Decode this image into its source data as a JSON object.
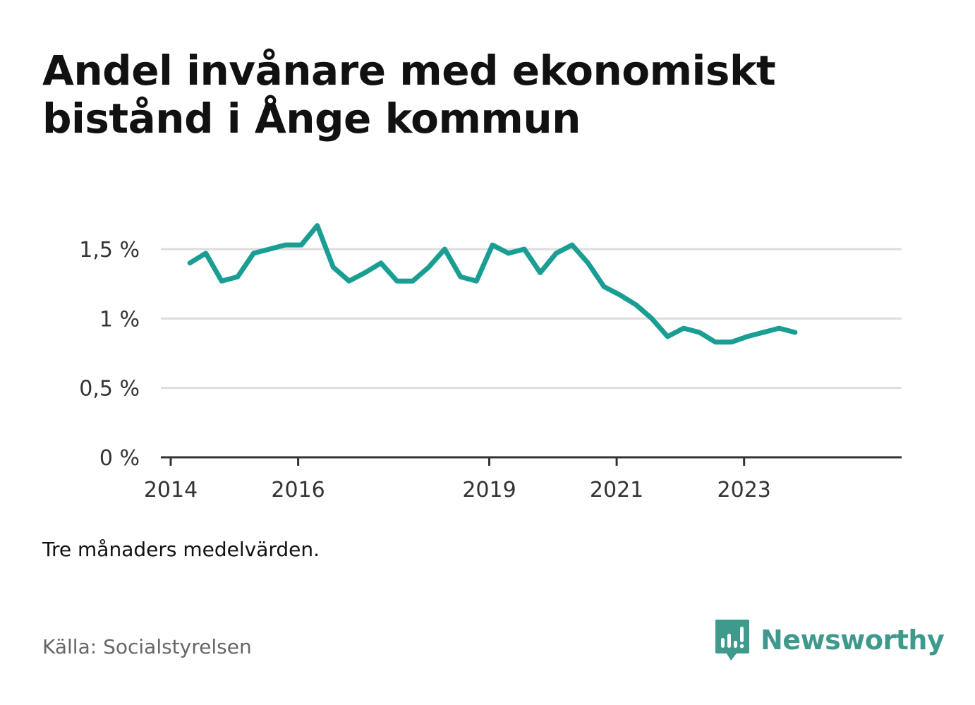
{
  "title": {
    "line1": "Andel invånare med ekonomiskt",
    "line2": "bistånd i Ånge kommun"
  },
  "note": "Tre månaders medelvärden.",
  "source": "Källa: Socialstyrelsen",
  "brand": {
    "name": "Newsworthy",
    "icon": "newsworthy-logo-icon",
    "color": "#3e9a8d"
  },
  "chart_data": {
    "type": "line",
    "title": "Andel invånare med ekonomiskt bistånd i Ånge kommun",
    "xlabel": "",
    "ylabel": "",
    "xlim": [
      2014,
      2024.45
    ],
    "ylim": [
      0,
      1.7
    ],
    "x_ticks": [
      2014,
      2016,
      2019,
      2021,
      2023
    ],
    "x_tick_labels": [
      "2014",
      "2016",
      "2019",
      "2021",
      "2023"
    ],
    "y_ticks": [
      0,
      0.5,
      1,
      1.5
    ],
    "y_tick_labels": [
      "0 %",
      "0,5 %",
      "1 %",
      "1,5 %"
    ],
    "grid": true,
    "legend": "none",
    "series": [
      {
        "color": "#1a9e93",
        "x": [
          2014.3,
          2014.55,
          2014.8,
          2015.05,
          2015.3,
          2015.55,
          2015.8,
          2016.05,
          2016.3,
          2016.55,
          2016.8,
          2017.05,
          2017.3,
          2017.55,
          2017.8,
          2018.05,
          2018.3,
          2018.55,
          2018.8,
          2019.05,
          2019.3,
          2019.55,
          2019.8,
          2020.05,
          2020.3,
          2020.55,
          2020.8,
          2021.05,
          2021.3,
          2021.55,
          2021.8,
          2022.05,
          2022.3,
          2022.55,
          2022.8,
          2023.05,
          2023.3,
          2023.55,
          2023.8
        ],
        "values": [
          1.4,
          1.47,
          1.27,
          1.3,
          1.47,
          1.5,
          1.53,
          1.53,
          1.67,
          1.37,
          1.27,
          1.33,
          1.4,
          1.27,
          1.27,
          1.37,
          1.5,
          1.3,
          1.27,
          1.53,
          1.47,
          1.5,
          1.33,
          1.47,
          1.53,
          1.4,
          1.23,
          1.17,
          1.1,
          1.0,
          0.87,
          0.93,
          0.9,
          0.83,
          0.83,
          0.87,
          0.9,
          0.93,
          0.9
        ]
      }
    ]
  }
}
